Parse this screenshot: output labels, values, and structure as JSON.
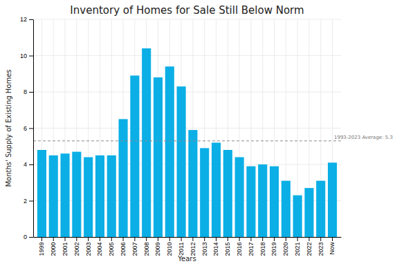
{
  "chart_data": {
    "type": "bar",
    "title": "Inventory of Homes for Sale Still Below Norm",
    "x_label": "Years",
    "y_label": "Months' Supply of Existing Homes",
    "categories": [
      "1999",
      "2000",
      "2001",
      "2002",
      "2003",
      "2004",
      "2005",
      "2006",
      "2007",
      "2008",
      "2009",
      "2010",
      "2011",
      "2012",
      "2013",
      "2014",
      "2015",
      "2016",
      "2017",
      "2018",
      "2019",
      "2020",
      "2021",
      "2022",
      "2023",
      "Now"
    ],
    "values": [
      4.8,
      4.5,
      4.6,
      4.7,
      4.4,
      4.5,
      4.5,
      6.5,
      8.9,
      10.4,
      8.8,
      9.4,
      8.3,
      5.9,
      4.9,
      5.2,
      4.8,
      4.4,
      3.9,
      4.0,
      3.9,
      3.1,
      2.3,
      2.7,
      3.1,
      4.1
    ],
    "color": "#0bafe6",
    "ylim": [
      0,
      12
    ],
    "yticks": [
      0,
      2,
      4,
      6,
      8,
      10,
      12
    ],
    "grid": true,
    "reference_line": {
      "value": 5.3,
      "label": "1993-2023 Average: 5.3"
    }
  }
}
